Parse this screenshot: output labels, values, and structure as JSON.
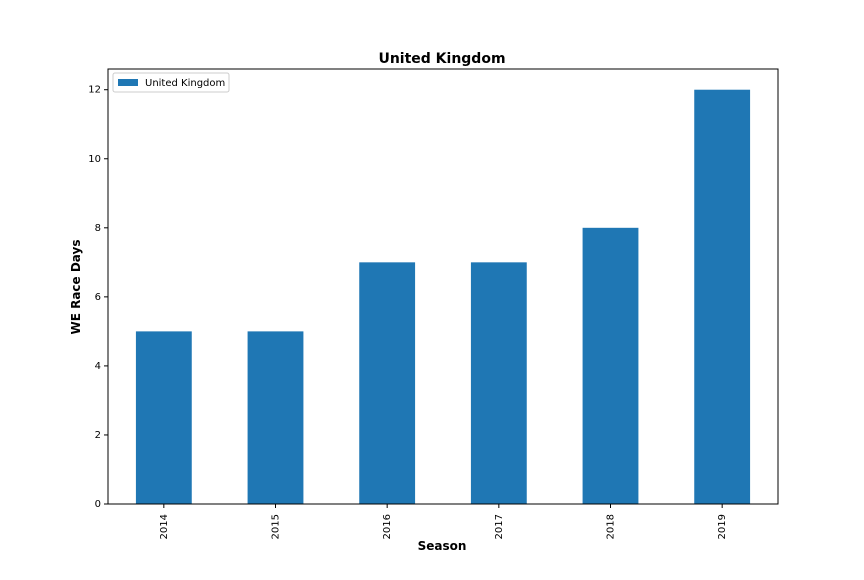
{
  "chart_data": {
    "type": "bar",
    "title": "United Kingdom",
    "xlabel": "Season",
    "ylabel": "WE Race Days",
    "categories": [
      "2014",
      "2015",
      "2016",
      "2017",
      "2018",
      "2019"
    ],
    "series": [
      {
        "name": "United Kingdom",
        "values": [
          5,
          5,
          7,
          7,
          8,
          12
        ],
        "color": "#1f77b4"
      }
    ],
    "ylim": [
      0,
      12.6
    ],
    "yticks": [
      0,
      2,
      4,
      6,
      8,
      10,
      12
    ],
    "grid": false,
    "legend_position": "top-left",
    "x_tick_rotation": "vertical"
  }
}
